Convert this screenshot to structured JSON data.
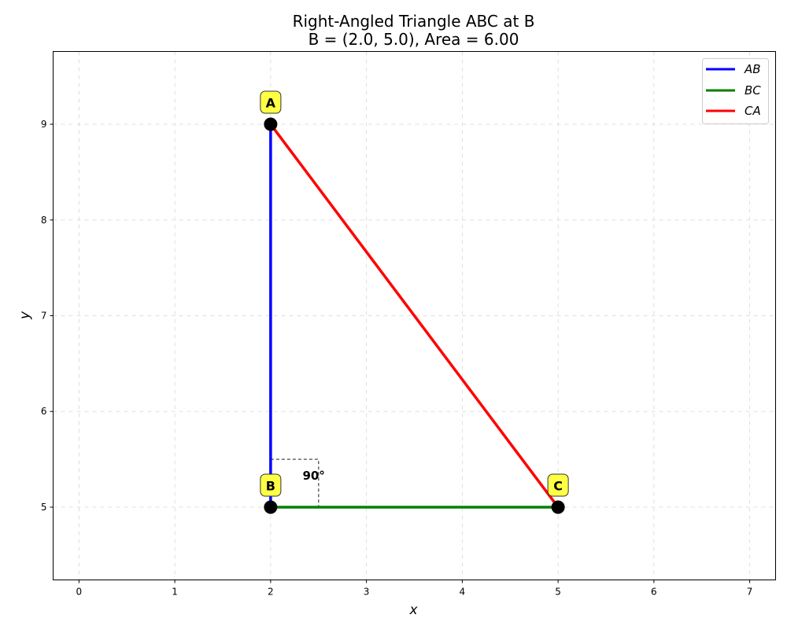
{
  "chart_data": {
    "type": "line",
    "title": "Right-Angled Triangle ABC at B",
    "subtitle": "B = (2.0, 5.0), Area = 6.00",
    "xlabel": "x",
    "ylabel": "y",
    "xlim": [
      -0.27,
      7.27
    ],
    "ylim": [
      4.24,
      9.76
    ],
    "xticks": [
      0,
      1,
      2,
      3,
      4,
      5,
      6,
      7
    ],
    "yticks": [
      5,
      6,
      7,
      8,
      9
    ],
    "grid": true,
    "legend_position": "top-right",
    "points": [
      {
        "name": "A",
        "x": 2.0,
        "y": 9.0
      },
      {
        "name": "B",
        "x": 2.0,
        "y": 5.0
      },
      {
        "name": "C",
        "x": 5.0,
        "y": 5.0
      }
    ],
    "series": [
      {
        "name": "AB",
        "color": "#0000ff",
        "from": "A",
        "to": "B"
      },
      {
        "name": "BC",
        "color": "#008000",
        "from": "B",
        "to": "C"
      },
      {
        "name": "CA",
        "color": "#ff0000",
        "from": "C",
        "to": "A"
      }
    ],
    "angle_annotation": {
      "text": "90°",
      "x": 2.45,
      "y": 5.33
    },
    "right_angle_marker_size": 0.5,
    "label_box_color": "#ffff44",
    "point_color": "#000000"
  }
}
